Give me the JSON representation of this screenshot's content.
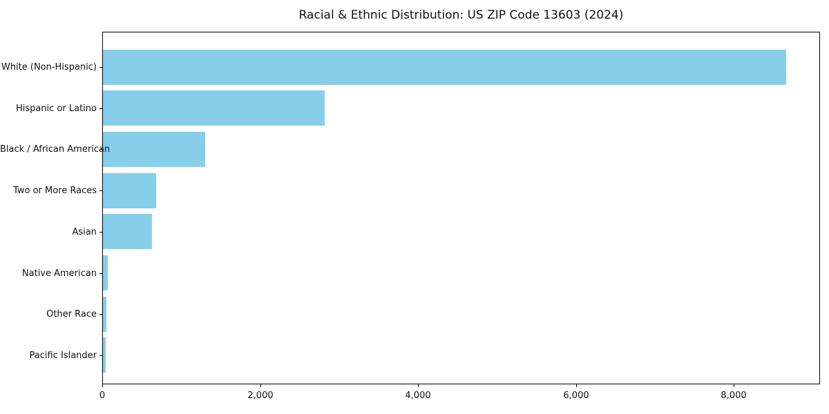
{
  "chart_data": {
    "type": "bar",
    "orientation": "horizontal",
    "title": "Racial & Ethnic Distribution: US ZIP Code 13603 (2024)",
    "categories": [
      "White (Non-Hispanic)",
      "Hispanic or Latino",
      "Black / African American",
      "Two or More Races",
      "Asian",
      "Native American",
      "Other Race",
      "Pacific Islander"
    ],
    "values": [
      8650,
      2810,
      1295,
      675,
      620,
      60,
      45,
      35
    ],
    "xlabel": "",
    "ylabel": "",
    "x_tick_values": [
      0,
      2000,
      4000,
      6000,
      8000
    ],
    "x_tick_labels": [
      "0",
      "2,000",
      "4,000",
      "6,000",
      "8,000"
    ],
    "xlim": [
      0,
      9090
    ],
    "bar_color": "#87CEEB",
    "grid": false,
    "legend_position": "none"
  }
}
